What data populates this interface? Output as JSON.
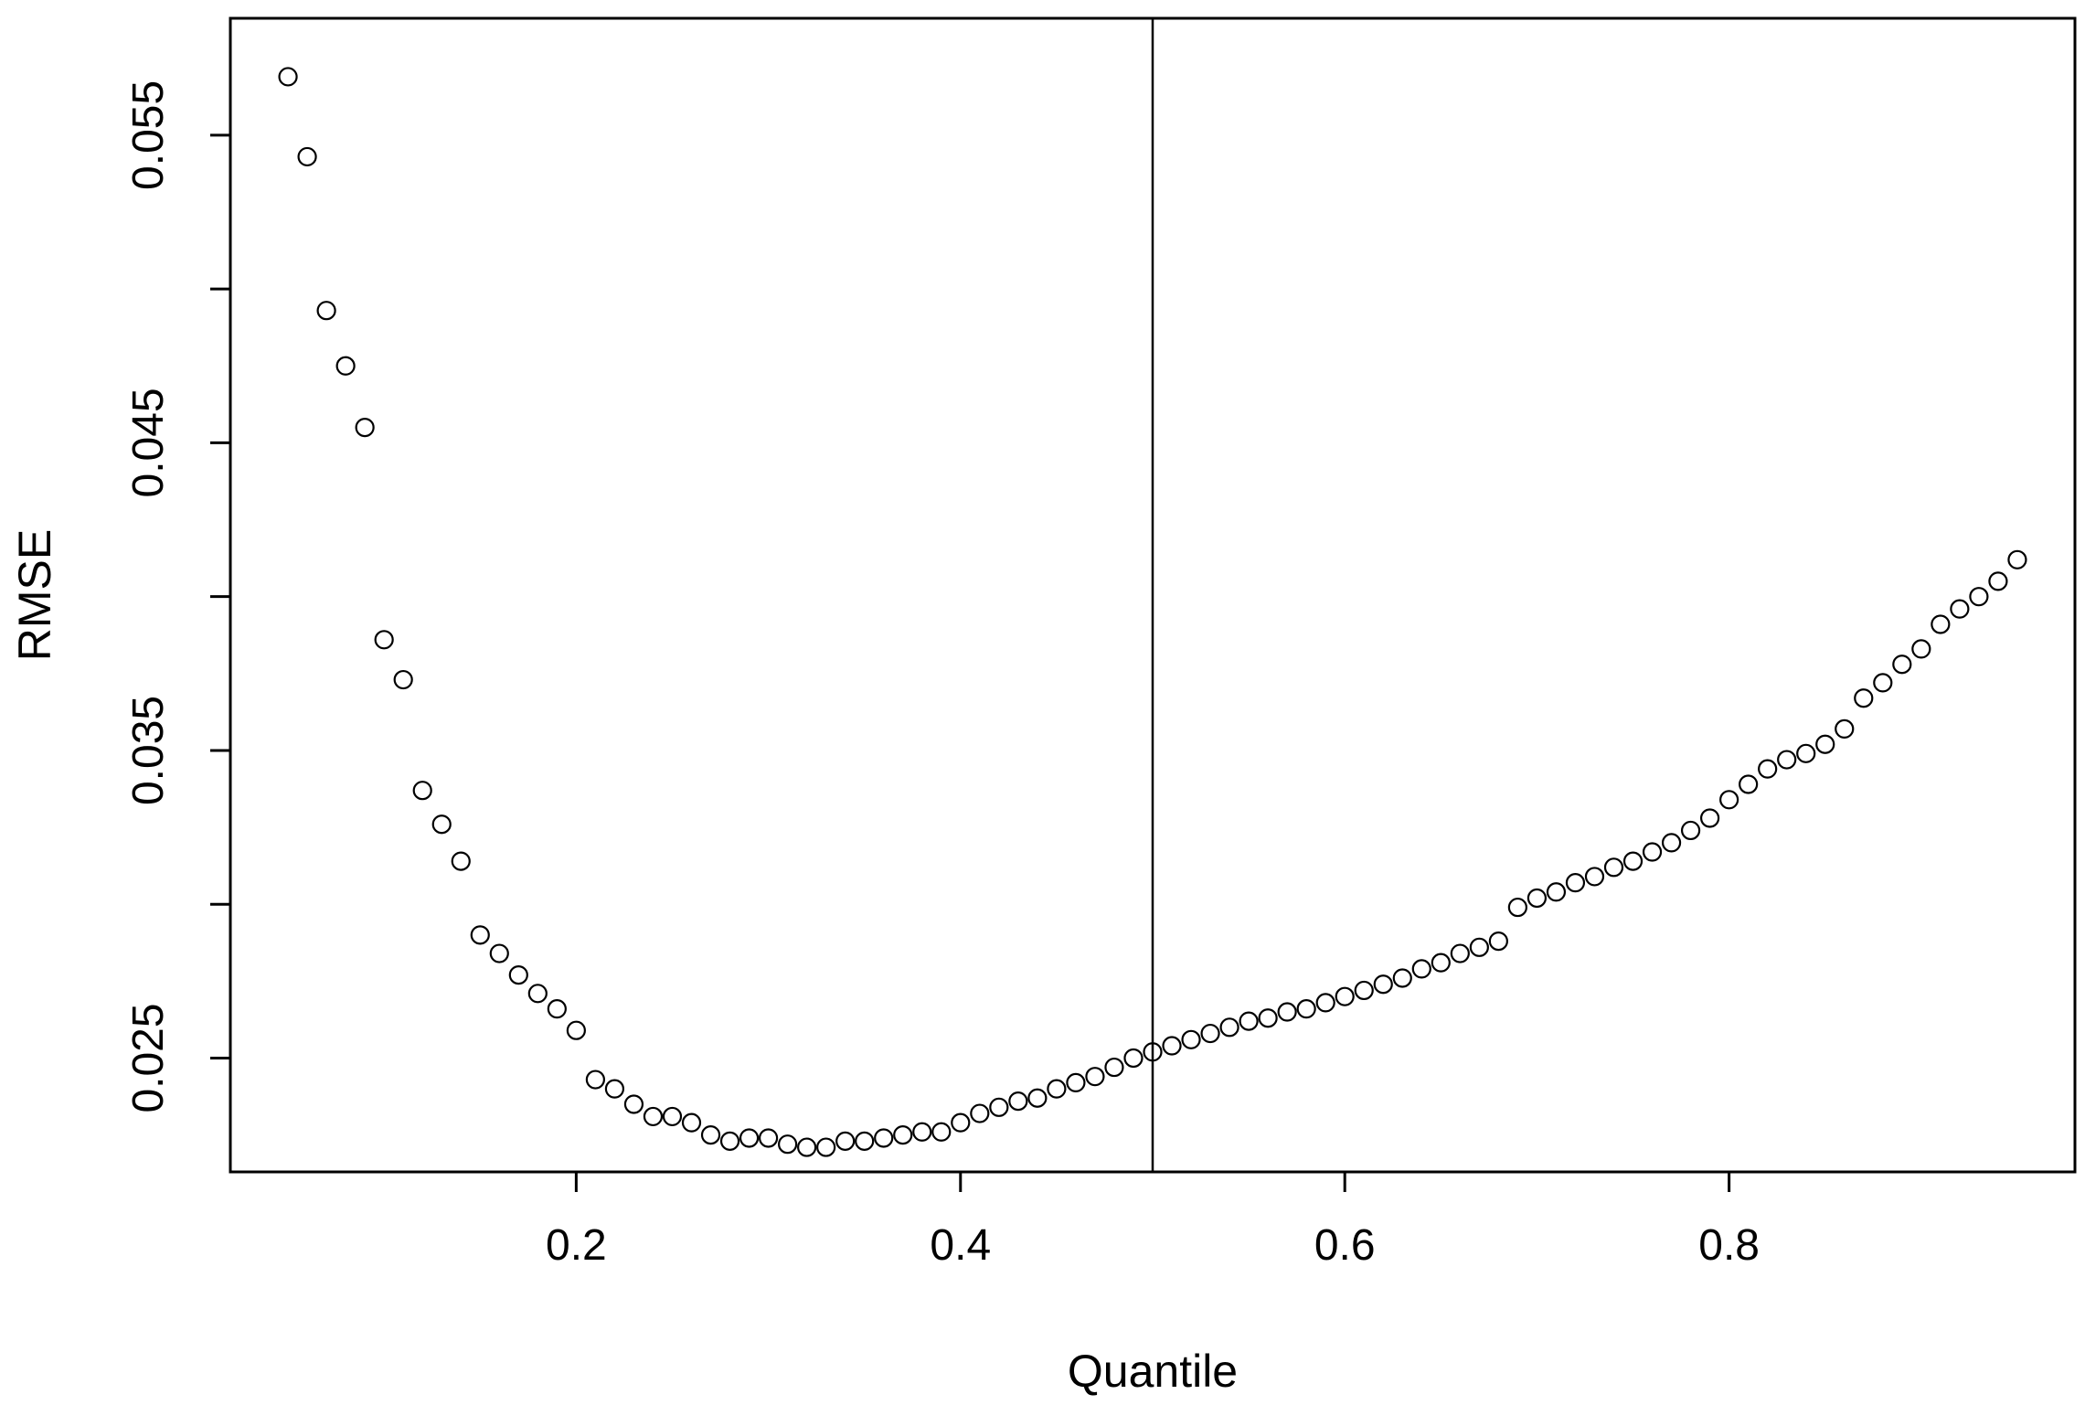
{
  "chart_data": {
    "type": "scatter",
    "title": "",
    "xlabel": "Quantile",
    "ylabel": "RMSE",
    "xlim": [
      0.02,
      0.98
    ],
    "ylim": [
      0.0213,
      0.0588
    ],
    "xticks": [
      0.2,
      0.4,
      0.6,
      0.8
    ],
    "xtick_labels": [
      "0.2",
      "0.4",
      "0.6",
      "0.8"
    ],
    "yticks": [
      0.025,
      0.03,
      0.035,
      0.04,
      0.045,
      0.05,
      0.055
    ],
    "ytick_labels": [
      "0.025",
      "",
      "0.035",
      "",
      "0.045",
      "",
      "0.055"
    ],
    "reference_vline": 0.5,
    "grid": false,
    "legend": "none",
    "marker": "open-circle",
    "series": [
      {
        "x": [
          0.05,
          0.06,
          0.07,
          0.08,
          0.09,
          0.1,
          0.11,
          0.12,
          0.13,
          0.14,
          0.15,
          0.16,
          0.17,
          0.18,
          0.19,
          0.2,
          0.21,
          0.22,
          0.23,
          0.24,
          0.25,
          0.26,
          0.27,
          0.28,
          0.29,
          0.3,
          0.31,
          0.32,
          0.33,
          0.34,
          0.35,
          0.36,
          0.37,
          0.38,
          0.39,
          0.4,
          0.41,
          0.42,
          0.43,
          0.44,
          0.45,
          0.46,
          0.47,
          0.48,
          0.49,
          0.5,
          0.51,
          0.52,
          0.53,
          0.54,
          0.55,
          0.56,
          0.57,
          0.58,
          0.59,
          0.6,
          0.61,
          0.62,
          0.63,
          0.64,
          0.65,
          0.66,
          0.67,
          0.68,
          0.69,
          0.7,
          0.71,
          0.72,
          0.73,
          0.74,
          0.75,
          0.76,
          0.77,
          0.78,
          0.79,
          0.8,
          0.81,
          0.82,
          0.83,
          0.84,
          0.85,
          0.86,
          0.87,
          0.88,
          0.89,
          0.9,
          0.91,
          0.92,
          0.93,
          0.94,
          0.95
        ],
        "y": [
          0.0569,
          0.0543,
          0.0493,
          0.0475,
          0.0455,
          0.0386,
          0.0373,
          0.0337,
          0.0326,
          0.0314,
          0.029,
          0.0284,
          0.0277,
          0.0271,
          0.0266,
          0.0259,
          0.0243,
          0.024,
          0.0235,
          0.0231,
          0.0231,
          0.0229,
          0.0225,
          0.0223,
          0.0224,
          0.0224,
          0.0222,
          0.0221,
          0.0221,
          0.0223,
          0.0223,
          0.0224,
          0.0225,
          0.0226,
          0.0226,
          0.0229,
          0.0232,
          0.0234,
          0.0236,
          0.0237,
          0.024,
          0.0242,
          0.0244,
          0.0247,
          0.025,
          0.0252,
          0.0254,
          0.0256,
          0.0258,
          0.026,
          0.0262,
          0.0263,
          0.0265,
          0.0266,
          0.0268,
          0.027,
          0.0272,
          0.0274,
          0.0276,
          0.0279,
          0.0281,
          0.0284,
          0.0286,
          0.0288,
          0.0299,
          0.0302,
          0.0304,
          0.0307,
          0.0309,
          0.0312,
          0.0314,
          0.0317,
          0.032,
          0.0324,
          0.0328,
          0.0334,
          0.0339,
          0.0344,
          0.0347,
          0.0349,
          0.0352,
          0.0357,
          0.0367,
          0.0372,
          0.0378,
          0.0383,
          0.0391,
          0.0396,
          0.04,
          0.0405,
          0.0412
        ]
      }
    ]
  }
}
